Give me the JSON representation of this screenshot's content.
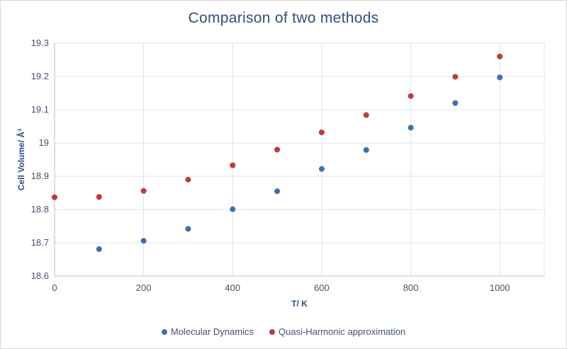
{
  "chart_data": {
    "type": "scatter",
    "title": "Comparison of two methods",
    "xlabel": "T/ K",
    "ylabel": "Cell Volume/ Å³",
    "xlim": [
      0,
      1100
    ],
    "ylim": [
      18.6,
      19.3
    ],
    "x_ticks": [
      0,
      200,
      400,
      600,
      800,
      1000
    ],
    "y_ticks": [
      18.6,
      18.7,
      18.8,
      18.9,
      19,
      19.1,
      19.2,
      19.3
    ],
    "y_tick_labels": [
      "18.6",
      "18.7",
      "18.8",
      "18.9",
      "19",
      "19.1",
      "19.2",
      "19.3"
    ],
    "x_tick_labels": [
      "0",
      "200",
      "400",
      "600",
      "800",
      "1000"
    ],
    "grid": true,
    "legend_position": "bottom",
    "series": [
      {
        "name": "Molecular Dynamics",
        "color": "#3a6fb5",
        "x": [
          100,
          200,
          300,
          400,
          500,
          600,
          700,
          800,
          900,
          1000
        ],
        "y": [
          18.681,
          18.706,
          18.742,
          18.801,
          18.855,
          18.922,
          18.979,
          19.046,
          19.12,
          19.197
        ]
      },
      {
        "name": "Quasi-Harmonic approximation",
        "color": "#c0393b",
        "x": [
          0,
          100,
          200,
          300,
          400,
          500,
          600,
          700,
          800,
          900,
          1000
        ],
        "y": [
          18.837,
          18.838,
          18.856,
          18.89,
          18.933,
          18.98,
          19.032,
          19.084,
          19.141,
          19.199,
          19.26
        ]
      }
    ]
  }
}
